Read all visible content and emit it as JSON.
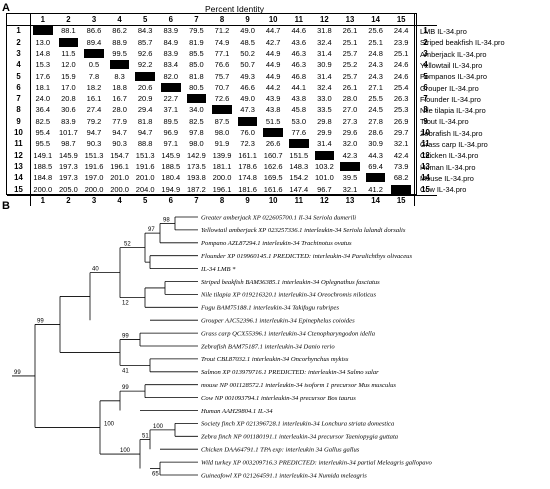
{
  "panel_a": {
    "label": "A",
    "title": "Percent Identity",
    "column_headers": [
      "1",
      "2",
      "3",
      "4",
      "5",
      "6",
      "7",
      "8",
      "9",
      "10",
      "11",
      "12",
      "13",
      "14",
      "15"
    ],
    "row_headers": [
      "1",
      "2",
      "3",
      "4",
      "5",
      "6",
      "7",
      "8",
      "9",
      "10",
      "11",
      "12",
      "13",
      "14",
      "15"
    ],
    "species": [
      "LMB IL-34.pro",
      "Striped beakfish IL-34.pro",
      "Amberjack IL-34.pro",
      "Yellowtail IL-34.pro",
      "Pompanos IL-34.pro",
      "Grouper IL-34.pro",
      "Flounder IL-34.pro",
      "Nile tilapia IL-34.pro",
      "Trout IL-34.pro",
      "Zebrafish IL-34.pro",
      "Grass carp IL-34.pro",
      "Chicken IL-34.pro",
      "Human IL-34.pro",
      "Mouse IL-34.pro",
      "Cow IL-34.pro"
    ],
    "matrix": [
      [
        "",
        "88.1",
        "86.6",
        "86.2",
        "84.3",
        "83.9",
        "79.5",
        "71.2",
        "49.0",
        "44.7",
        "44.6",
        "31.8",
        "26.1",
        "25.6",
        "24.4"
      ],
      [
        "13.0",
        "",
        "89.4",
        "88.9",
        "85.7",
        "84.9",
        "81.9",
        "74.9",
        "48.5",
        "42.7",
        "43.6",
        "32.4",
        "25.1",
        "25.1",
        "23.9"
      ],
      [
        "14.8",
        "11.5",
        "",
        "99.5",
        "92.6",
        "83.9",
        "85.5",
        "77.1",
        "50.2",
        "44.9",
        "46.3",
        "31.4",
        "25.7",
        "24.8",
        "25.1"
      ],
      [
        "15.3",
        "12.0",
        "0.5",
        "",
        "92.2",
        "83.4",
        "85.0",
        "76.6",
        "50.7",
        "44.9",
        "46.3",
        "30.9",
        "25.2",
        "24.3",
        "24.6"
      ],
      [
        "17.6",
        "15.9",
        "7.8",
        "8.3",
        "",
        "82.0",
        "81.8",
        "75.7",
        "49.3",
        "44.9",
        "46.8",
        "31.4",
        "25.7",
        "24.3",
        "24.6"
      ],
      [
        "18.1",
        "17.0",
        "18.2",
        "18.8",
        "20.6",
        "",
        "80.5",
        "70.7",
        "46.6",
        "44.2",
        "44.1",
        "32.4",
        "26.1",
        "27.1",
        "25.4"
      ],
      [
        "24.0",
        "20.8",
        "16.1",
        "16.7",
        "20.9",
        "22.7",
        "",
        "72.6",
        "49.0",
        "43.9",
        "43.8",
        "33.0",
        "28.0",
        "25.5",
        "26.3"
      ],
      [
        "36.4",
        "30.6",
        "27.4",
        "28.0",
        "29.4",
        "37.1",
        "34.0",
        "",
        "47.3",
        "43.8",
        "45.8",
        "33.5",
        "27.0",
        "24.5",
        "25.3"
      ],
      [
        "82.5",
        "83.9",
        "79.2",
        "77.9",
        "81.8",
        "89.5",
        "82.5",
        "87.5",
        "",
        "51.5",
        "53.0",
        "29.8",
        "27.3",
        "27.8",
        "26.9"
      ],
      [
        "95.4",
        "101.7",
        "94.7",
        "94.7",
        "94.7",
        "96.9",
        "97.8",
        "98.0",
        "76.0",
        "",
        "77.6",
        "29.9",
        "29.6",
        "28.6",
        "29.7"
      ],
      [
        "95.5",
        "98.7",
        "90.3",
        "90.3",
        "88.8",
        "97.1",
        "98.0",
        "91.9",
        "72.3",
        "26.6",
        "",
        "31.4",
        "32.0",
        "30.9",
        "32.1"
      ],
      [
        "149.1",
        "145.9",
        "151.3",
        "154.7",
        "151.3",
        "145.9",
        "142.9",
        "139.9",
        "161.1",
        "160.7",
        "151.5",
        "",
        "42.3",
        "44.3",
        "42.4"
      ],
      [
        "188.5",
        "197.3",
        "191.6",
        "196.1",
        "191.6",
        "188.5",
        "173.5",
        "181.1",
        "178.6",
        "162.6",
        "148.3",
        "103.2",
        "",
        "69.4",
        "73.9"
      ],
      [
        "184.8",
        "197.3",
        "197.0",
        "201.0",
        "201.0",
        "180.4",
        "193.8",
        "200.0",
        "174.8",
        "169.5",
        "154.2",
        "101.0",
        "39.5",
        "",
        "68.2"
      ],
      [
        "200.0",
        "205.0",
        "200.0",
        "200.0",
        "204.0",
        "194.9",
        "187.2",
        "196.1",
        "181.6",
        "161.6",
        "147.4",
        "96.7",
        "32.1",
        "41.2",
        ""
      ]
    ]
  },
  "panel_b": {
    "label": "B",
    "leaves": [
      "Greater amberjack XP 022605700.1 Il-34 Seriola dumerili",
      "Yellowtail amberjack XP 023257336.1 interleukin-34 Seriola lalandi dorsalis",
      "Pompano AZL87294.1 interleukin-34 Trachinotus ovatus",
      "Flounder XP 019960145.1 PREDICTED: interleukin-34 Paralichthys olivaceus",
      "IL-34 LMB *",
      "Striped beakfish BAM36385.1 interleukin-34 Oplegnathus fasciatus",
      "Nile tilapia XP 019216320.1 interleukin-34 Oreochromis niloticus",
      "Fugu BAM75188.1 interleukin-34 Takifugu rubripes",
      "Grouper AJC52396.1 interleukin-34 Epinephelus coioides",
      "Grass carp QCX55396.1 interleukin-34 Ctenopharyngodon idella",
      "Zebrafish BAM75187.1 interleukin-34 Danio rerio",
      "Trout CBL87032.1 interleukin-34 Oncorhynchus mykiss",
      "Salmon XP 013979716.1 PREDICTED: interleukin-34 Salmo salar",
      "mouse NP 001128572.1 interleukin-34 isoform 1 precursor Mus musculus",
      "Cow NP 001093794.1 interleukin-34 precursor Bos taurus",
      "Human AAH29804.1 IL-34",
      "Society finch XP 021396728.1 interleukin-34 Lonchura striata domestica",
      "Zebra finch NP 001180191.1 interleukin-34 precursor Taeniopygia guttata",
      "Chicken DAA64791.1 TPA exp: interleukin 34 Gallus gallus",
      "Wild turkey XP 003209716.3 PREDICTED: interleukin-34 partial Meleagris gallopavo",
      "Guineafowl XP 021264591.1 interleukin-34 Numida meleagris"
    ],
    "bootstrap": [
      "98",
      "97",
      "52",
      "12",
      "40",
      "99",
      "41",
      "99",
      "99",
      "100",
      "51",
      "65",
      "100",
      "100",
      "99"
    ]
  }
}
